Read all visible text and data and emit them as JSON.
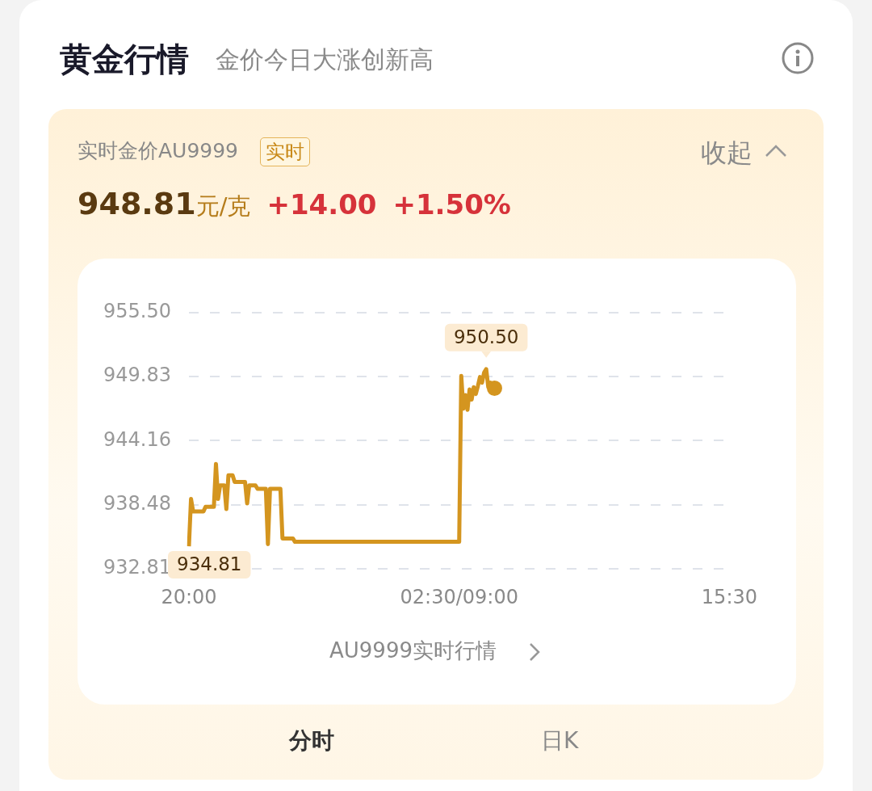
{
  "chart_data": {
    "type": "line",
    "title": "黄金行情",
    "subtitle": "金价今日大涨创新高",
    "annotations": [
      "实时金价AU9999",
      "实时",
      "收起",
      "948.81元/克",
      "+14.00",
      "+1.50%",
      "AU9999实时行情",
      "分时",
      "日K",
      {
        "text": "934.81",
        "x": "20:00",
        "y": 934.81
      },
      {
        "text": "950.50",
        "y": 950.5
      }
    ],
    "categories": [
      "20:00",
      null,
      null,
      null,
      null,
      null,
      null,
      null,
      null,
      null,
      null,
      null,
      null,
      null,
      null,
      null,
      null,
      null,
      null,
      null,
      null,
      null,
      null,
      null,
      null,
      null,
      null,
      null,
      null,
      null,
      null,
      null,
      null,
      null,
      null,
      null,
      null,
      null,
      null,
      null,
      null,
      null,
      null,
      null,
      null,
      null,
      null,
      null,
      null,
      null,
      null,
      null,
      null,
      null,
      null,
      null,
      null,
      null,
      null,
      null,
      null,
      null,
      null,
      null,
      null,
      null,
      null,
      null,
      null,
      null,
      null,
      null,
      null,
      null,
      null,
      null,
      null,
      null,
      null,
      null,
      null,
      null,
      null,
      null,
      null,
      null,
      null,
      null,
      null,
      null,
      null,
      null,
      null,
      null,
      null,
      null,
      null,
      null,
      null,
      null,
      null,
      null,
      null,
      null,
      null,
      null,
      null,
      null,
      null,
      null,
      null,
      null,
      null,
      null,
      null,
      null,
      null,
      null,
      null,
      null,
      null,
      null,
      null,
      null,
      null,
      null,
      null,
      null,
      null,
      null,
      "02:30/09:00",
      null,
      null,
      null,
      null,
      null,
      null,
      null,
      null,
      null,
      null,
      null,
      null,
      null,
      null,
      null,
      null,
      null,
      null,
      null,
      null,
      null,
      null,
      null,
      null,
      null,
      null,
      null,
      null,
      null,
      null,
      null,
      null,
      null,
      null,
      null,
      null,
      null,
      null,
      null,
      null,
      null,
      null,
      null,
      null,
      null,
      null,
      null,
      null,
      null,
      null,
      null,
      null,
      null,
      null,
      null,
      null,
      null,
      null,
      null,
      null,
      null,
      null,
      null,
      null,
      null,
      null,
      null,
      null,
      null,
      null,
      null,
      null,
      null,
      null,
      null,
      null,
      null,
      null,
      null,
      null,
      null,
      null,
      null,
      null,
      null,
      null,
      null,
      null,
      null,
      null,
      null,
      null,
      null,
      null,
      null,
      null,
      null,
      null,
      null,
      null,
      null,
      null,
      null,
      null,
      null,
      null,
      null,
      null,
      null,
      null,
      null,
      null,
      null,
      null,
      null,
      null,
      null,
      null,
      null,
      null,
      null,
      null,
      null,
      null,
      null,
      null,
      null,
      null,
      null,
      "15:30"
    ],
    "series": [
      {
        "color": "#d4951f",
        "values": [
          934.81,
          939.0,
          937.9,
          937.9,
          937.9,
          937.9,
          937.9,
          937.9,
          938.3,
          938.3,
          938.3,
          938.3,
          938.3,
          942.1,
          939.0,
          940.2,
          940.2,
          940.2,
          938.1,
          941.1,
          941.1,
          941.1,
          940.5,
          940.5,
          940.5,
          940.5,
          940.5,
          940.5,
          938.6,
          940.2,
          940.2,
          940.2,
          940.2,
          939.9,
          939.9,
          939.9,
          939.9,
          939.9,
          935.0,
          939.9,
          939.9,
          939.9,
          939.9,
          939.9,
          939.9,
          935.5,
          935.5,
          935.5,
          935.5,
          935.5,
          935.5,
          935.2,
          935.2,
          935.2,
          935.2,
          935.2,
          935.2,
          935.2,
          935.2,
          935.2,
          935.2,
          935.2,
          935.2,
          935.2,
          935.2,
          935.2,
          935.2,
          935.2,
          935.2,
          935.2,
          935.2,
          935.2,
          935.2,
          935.2,
          935.2,
          935.2,
          935.2,
          935.2,
          935.2,
          935.2,
          935.2,
          935.2,
          935.2,
          935.2,
          935.2,
          935.2,
          935.2,
          935.2,
          935.2,
          935.2,
          935.2,
          935.2,
          935.2,
          935.2,
          935.2,
          935.2,
          935.2,
          935.2,
          935.2,
          935.2,
          935.2,
          935.2,
          935.2,
          935.2,
          935.2,
          935.2,
          935.2,
          935.2,
          935.2,
          935.2,
          935.2,
          935.2,
          935.2,
          935.2,
          935.2,
          935.2,
          935.2,
          935.2,
          935.2,
          935.2,
          935.2,
          935.2,
          935.2,
          935.2,
          935.2,
          935.2,
          935.2,
          935.2,
          935.2,
          935.2,
          935.2,
          949.9,
          947.0,
          948.2,
          946.9,
          948.7,
          947.8,
          948.9,
          948.3,
          949.0,
          949.8,
          949.3,
          950.2,
          950.5,
          948.9,
          949.3,
          949.0,
          948.81,
          null,
          null,
          null,
          null,
          null,
          null,
          null,
          null,
          null,
          null,
          null,
          null,
          null,
          null,
          null,
          null,
          null,
          null,
          null,
          null,
          null,
          null,
          null,
          null,
          null,
          null,
          null,
          null,
          null,
          null,
          null,
          null,
          null,
          null,
          null,
          null,
          null,
          null,
          null,
          null,
          null,
          null,
          null,
          null,
          null,
          null,
          null,
          null,
          null,
          null,
          null,
          null,
          null,
          null,
          null,
          null,
          null,
          null,
          null,
          null,
          null,
          null,
          null,
          null,
          null,
          null,
          null,
          null,
          null,
          null,
          null,
          null,
          null,
          null,
          null,
          null,
          null,
          null,
          null,
          null,
          null,
          null,
          null,
          null,
          null,
          null,
          null,
          null,
          null,
          null,
          null,
          null,
          null,
          null,
          null,
          null,
          null,
          null,
          null,
          null,
          null,
          null,
          null,
          null,
          null,
          null,
          null,
          null,
          null,
          null,
          null,
          null,
          null
        ]
      }
    ],
    "ylim": [
      932.81,
      955.5
    ],
    "yticks": [
      {
        "value": 932.81,
        "label": "932.81"
      },
      {
        "value": 938.48,
        "label": "938.48"
      },
      {
        "value": 944.16,
        "label": "944.16"
      },
      {
        "value": 949.83,
        "label": "949.83"
      },
      {
        "value": 955.5,
        "label": "955.50"
      }
    ],
    "grid": "y",
    "legend": false,
    "marker": "none",
    "line_style": "solid"
  }
}
